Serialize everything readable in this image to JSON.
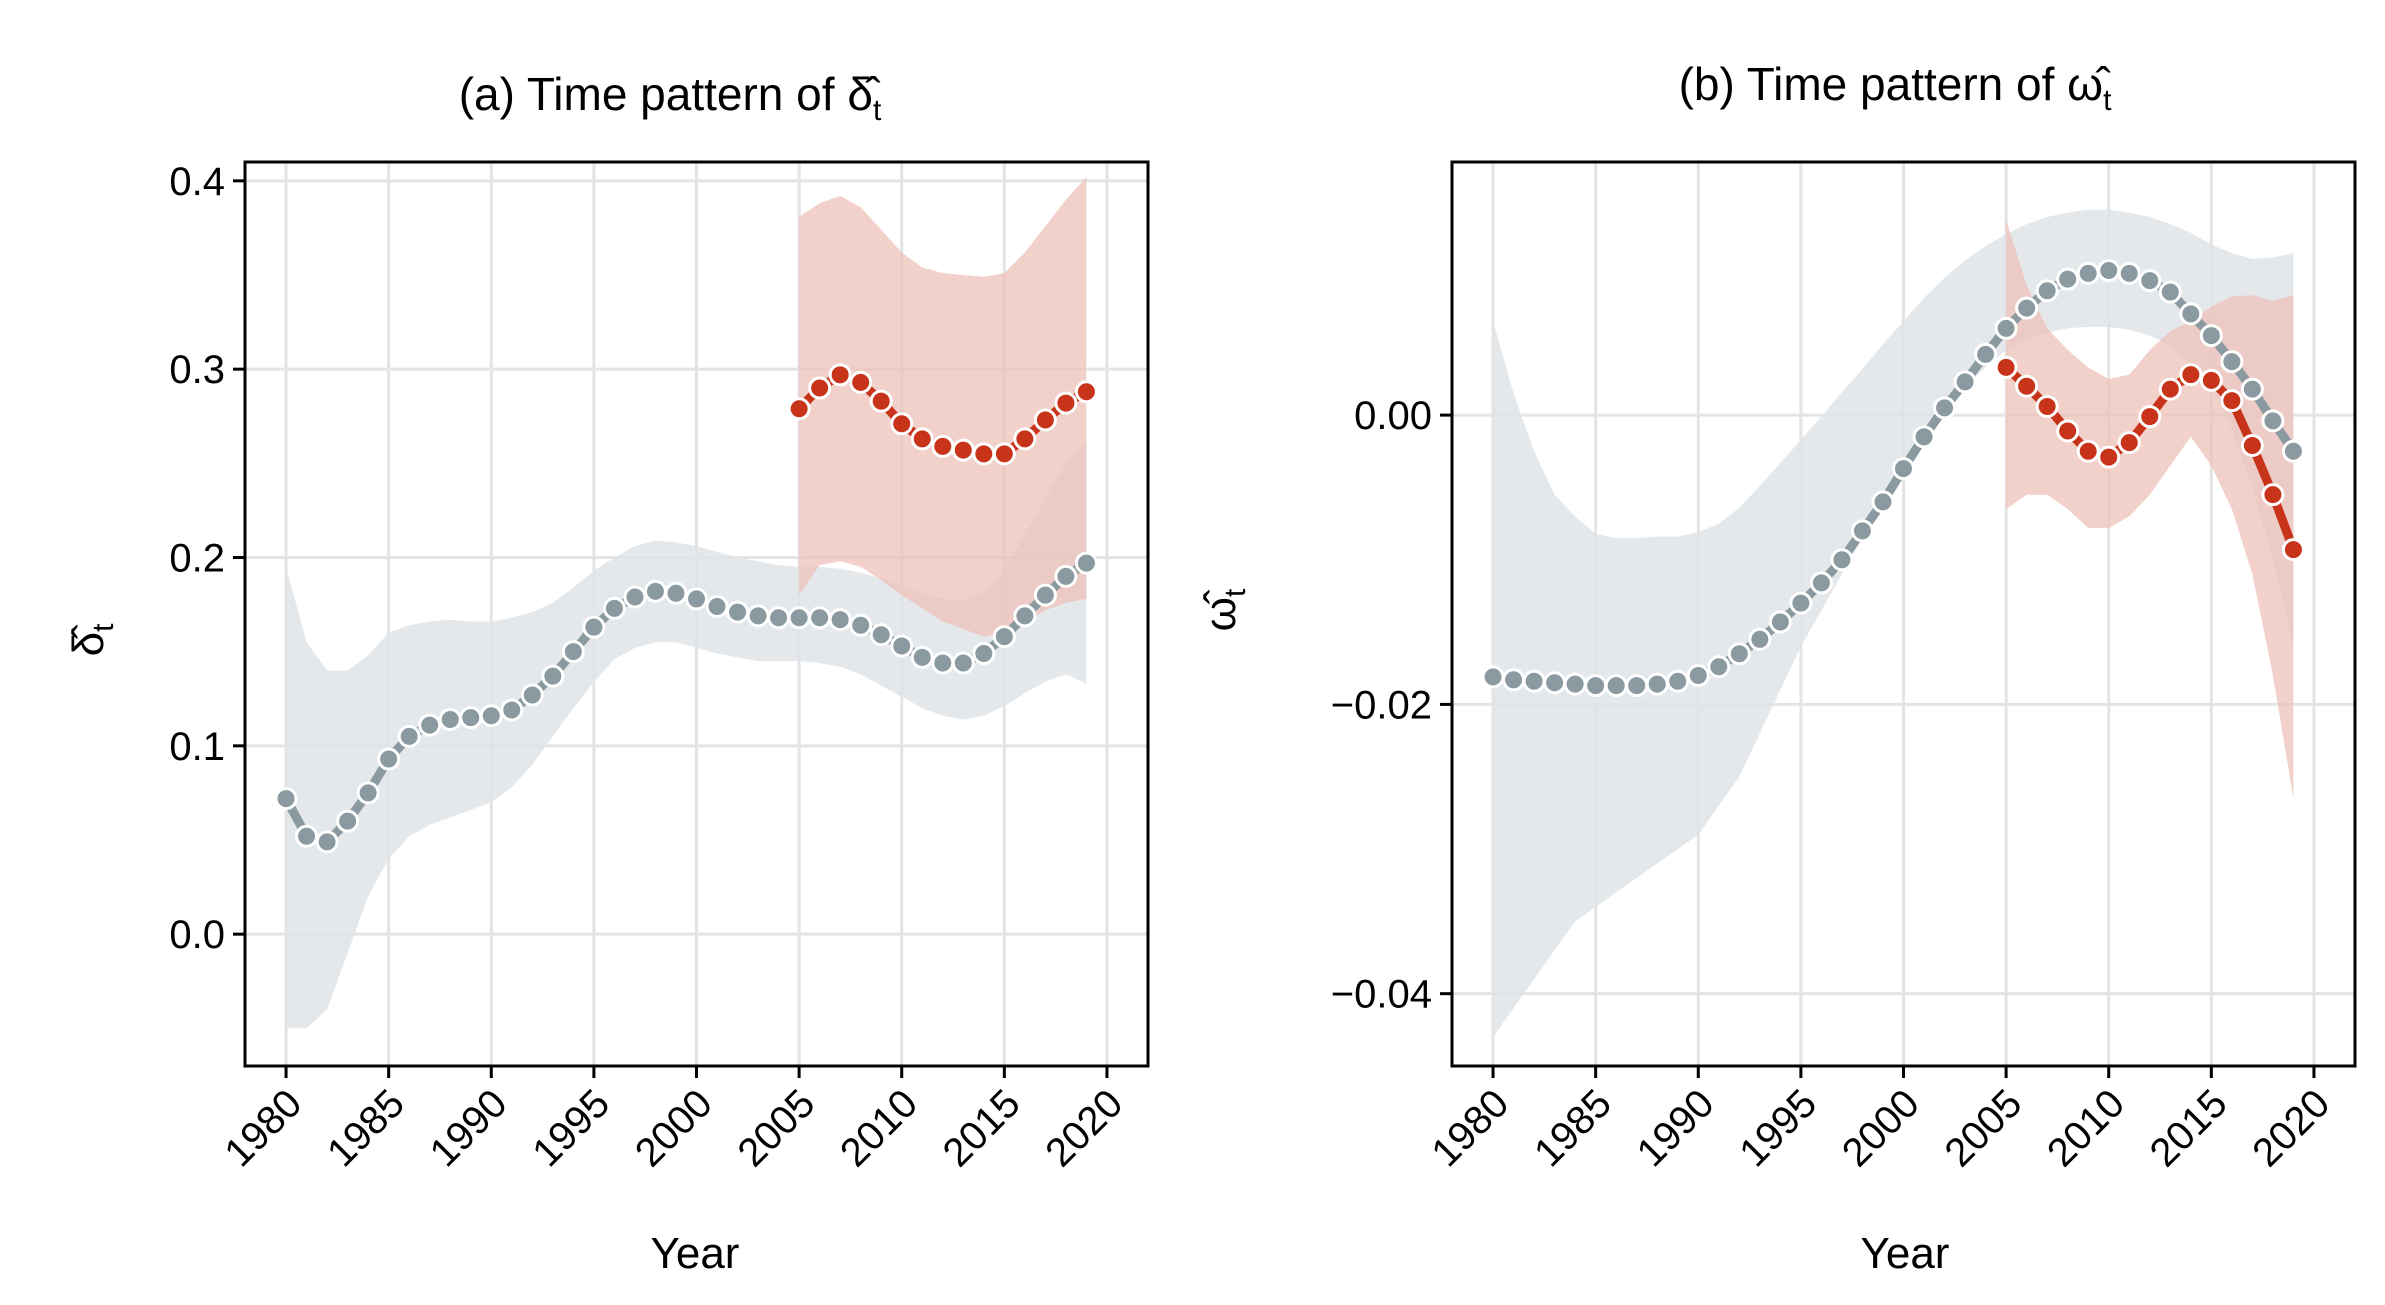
{
  "colors": {
    "grey_line": "#8a9aa0",
    "grey_band": "#dfe4e7",
    "red_line": "#c8341a",
    "red_band": "#eebfb7",
    "grid": "#e4e4e4"
  },
  "chart_data": [
    {
      "type": "line",
      "title_prefix": "(a) Time pattern of ",
      "title_symbol": "δ̂",
      "title_sub": "t",
      "ylabel_symbol": "δ̂",
      "ylabel_sub": "t",
      "xlabel": "Year",
      "xlim": [
        1978,
        2022
      ],
      "ylim": [
        -0.07,
        0.41
      ],
      "xticks": [
        1980,
        1985,
        1990,
        1995,
        2000,
        2005,
        2010,
        2015,
        2020
      ],
      "yticks": [
        0.0,
        0.1,
        0.2,
        0.3,
        0.4
      ],
      "ytick_labels": [
        "0.0",
        "0.1",
        "0.2",
        "0.3",
        "0.4"
      ],
      "grid": true,
      "series": [
        {
          "color": "grey",
          "x": [
            1980,
            1981,
            1982,
            1983,
            1984,
            1985,
            1986,
            1987,
            1988,
            1989,
            1990,
            1991,
            1992,
            1993,
            1994,
            1995,
            1996,
            1997,
            1998,
            1999,
            2000,
            2001,
            2002,
            2003,
            2004,
            2005,
            2006,
            2007,
            2008,
            2009,
            2010,
            2011,
            2012,
            2013,
            2014,
            2015,
            2016,
            2017,
            2018,
            2019
          ],
          "y": [
            0.072,
            0.052,
            0.049,
            0.06,
            0.075,
            0.093,
            0.105,
            0.111,
            0.114,
            0.115,
            0.116,
            0.119,
            0.127,
            0.137,
            0.15,
            0.163,
            0.173,
            0.179,
            0.182,
            0.181,
            0.178,
            0.174,
            0.171,
            0.169,
            0.168,
            0.168,
            0.168,
            0.167,
            0.164,
            0.159,
            0.153,
            0.147,
            0.144,
            0.144,
            0.149,
            0.158,
            0.169,
            0.18,
            0.19,
            0.197
          ],
          "band_lower": [
            -0.05,
            -0.05,
            -0.04,
            -0.01,
            0.02,
            0.04,
            0.052,
            0.058,
            0.062,
            0.066,
            0.07,
            0.078,
            0.09,
            0.105,
            0.12,
            0.134,
            0.146,
            0.152,
            0.155,
            0.155,
            0.152,
            0.149,
            0.147,
            0.145,
            0.145,
            0.145,
            0.144,
            0.142,
            0.138,
            0.132,
            0.126,
            0.12,
            0.116,
            0.114,
            0.116,
            0.121,
            0.128,
            0.134,
            0.138,
            0.133
          ],
          "band_upper": [
            0.195,
            0.155,
            0.14,
            0.14,
            0.148,
            0.16,
            0.164,
            0.166,
            0.167,
            0.166,
            0.166,
            0.168,
            0.171,
            0.176,
            0.184,
            0.193,
            0.2,
            0.206,
            0.209,
            0.208,
            0.206,
            0.203,
            0.2,
            0.198,
            0.196,
            0.195,
            0.195,
            0.194,
            0.192,
            0.189,
            0.185,
            0.181,
            0.178,
            0.177,
            0.181,
            0.193,
            0.212,
            0.232,
            0.25,
            0.262
          ]
        },
        {
          "color": "red",
          "x": [
            2005,
            2006,
            2007,
            2008,
            2009,
            2010,
            2011,
            2012,
            2013,
            2014,
            2015,
            2016,
            2017,
            2018,
            2019
          ],
          "y": [
            0.279,
            0.29,
            0.297,
            0.293,
            0.283,
            0.271,
            0.263,
            0.259,
            0.257,
            0.255,
            0.255,
            0.263,
            0.273,
            0.282,
            0.288
          ],
          "band_lower": [
            0.18,
            0.196,
            0.198,
            0.195,
            0.188,
            0.18,
            0.173,
            0.166,
            0.162,
            0.158,
            0.16,
            0.166,
            0.172,
            0.176,
            0.178
          ],
          "band_upper": [
            0.381,
            0.388,
            0.392,
            0.386,
            0.374,
            0.362,
            0.354,
            0.351,
            0.35,
            0.349,
            0.351,
            0.362,
            0.376,
            0.39,
            0.402
          ]
        }
      ]
    },
    {
      "type": "line",
      "title_prefix": "(b) Time pattern of ",
      "title_symbol": "ω̂",
      "title_sub": "t",
      "ylabel_symbol": "ω̂",
      "ylabel_sub": "t",
      "xlabel": "Year",
      "xlim": [
        1978,
        2022
      ],
      "ylim": [
        -0.045,
        0.0175
      ],
      "xticks": [
        1980,
        1985,
        1990,
        1995,
        2000,
        2005,
        2010,
        2015,
        2020
      ],
      "yticks": [
        -0.04,
        -0.02,
        0.0
      ],
      "ytick_labels": [
        "−0.04",
        "−0.02",
        "0.00"
      ],
      "grid": true,
      "series": [
        {
          "color": "grey",
          "x": [
            1980,
            1981,
            1982,
            1983,
            1984,
            1985,
            1986,
            1987,
            1988,
            1989,
            1990,
            1991,
            1992,
            1993,
            1994,
            1995,
            1996,
            1997,
            1998,
            1999,
            2000,
            2001,
            2002,
            2003,
            2004,
            2005,
            2006,
            2007,
            2008,
            2009,
            2010,
            2011,
            2012,
            2013,
            2014,
            2015,
            2016,
            2017,
            2018,
            2019
          ],
          "y": [
            -0.0181,
            -0.0183,
            -0.0184,
            -0.0185,
            -0.0186,
            -0.0187,
            -0.0187,
            -0.0187,
            -0.0186,
            -0.0184,
            -0.018,
            -0.0174,
            -0.0165,
            -0.0155,
            -0.0143,
            -0.013,
            -0.0116,
            -0.01,
            -0.008,
            -0.006,
            -0.0037,
            -0.0015,
            0.0005,
            0.0023,
            0.0042,
            0.006,
            0.0074,
            0.0086,
            0.0094,
            0.0098,
            0.01,
            0.0098,
            0.0093,
            0.0085,
            0.007,
            0.0055,
            0.0037,
            0.0018,
            -0.0004,
            -0.0025
          ],
          "band_lower": [
            -0.043,
            -0.041,
            -0.039,
            -0.037,
            -0.035,
            -0.034,
            -0.033,
            -0.032,
            -0.031,
            -0.03,
            -0.029,
            -0.027,
            -0.025,
            -0.022,
            -0.019,
            -0.016,
            -0.0135,
            -0.011,
            -0.0085,
            -0.006,
            -0.0037,
            -0.0015,
            0.0005,
            0.002,
            0.0033,
            0.0045,
            0.0052,
            0.0057,
            0.006,
            0.0061,
            0.0061,
            0.0059,
            0.0055,
            0.0048,
            0.0035,
            0.002,
            -0.001,
            -0.005,
            -0.01,
            -0.016
          ],
          "band_upper": [
            0.0065,
            0.0015,
            -0.0025,
            -0.0055,
            -0.007,
            -0.0082,
            -0.0085,
            -0.0085,
            -0.0084,
            -0.0084,
            -0.0081,
            -0.0075,
            -0.0064,
            -0.0049,
            -0.0033,
            -0.0017,
            -0.0001,
            0.0016,
            0.0032,
            0.0049,
            0.0065,
            0.0081,
            0.0095,
            0.0107,
            0.0117,
            0.0125,
            0.0132,
            0.0137,
            0.014,
            0.0142,
            0.0142,
            0.014,
            0.0137,
            0.0132,
            0.0126,
            0.0118,
            0.0112,
            0.0108,
            0.0109,
            0.0112
          ]
        },
        {
          "color": "red",
          "x": [
            2005,
            2006,
            2007,
            2008,
            2009,
            2010,
            2011,
            2012,
            2013,
            2014,
            2015,
            2016,
            2017,
            2018,
            2019
          ],
          "y": [
            0.0033,
            0.002,
            0.0006,
            -0.0011,
            -0.0025,
            -0.0029,
            -0.0019,
            -0.0001,
            0.0018,
            0.0028,
            0.0024,
            0.001,
            -0.0021,
            -0.0055,
            -0.0093
          ],
          "band_lower": [
            -0.0065,
            -0.0055,
            -0.0055,
            -0.0065,
            -0.0078,
            -0.0078,
            -0.007,
            -0.0055,
            -0.0035,
            -0.0015,
            -0.0035,
            -0.0065,
            -0.011,
            -0.018,
            -0.0265
          ],
          "band_upper": [
            0.0135,
            0.009,
            0.006,
            0.0045,
            0.0033,
            0.0025,
            0.0028,
            0.0045,
            0.0058,
            0.0065,
            0.0075,
            0.0082,
            0.0083,
            0.0079,
            0.0083
          ]
        }
      ]
    }
  ]
}
